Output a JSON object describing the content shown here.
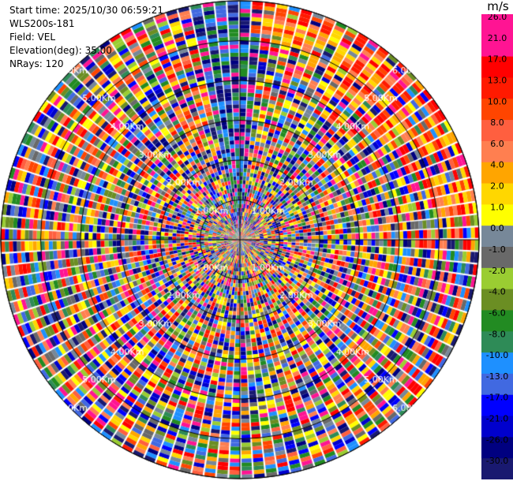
{
  "header": {
    "start_time": "Start time: 2025/10/30 06:59:21",
    "instrument": "WLS200s-181",
    "field": "Field: VEL",
    "elevation": "Elevation(deg): 35.00",
    "nrays": "NRays: 120"
  },
  "chart_data": {
    "type": "heatmap",
    "subtype": "ppi-polar",
    "field": "VEL",
    "n_rays": 120,
    "max_range_km": 6.0,
    "range_rings_km": [
      1,
      2,
      3,
      4,
      5,
      6
    ],
    "ring_labels": [
      "1.00Km",
      "2.00Km",
      "3.00Km",
      "4.00Km",
      "5.00Km",
      "6.00Km"
    ],
    "colorbar": {
      "unit": "m/s",
      "ticks": [
        "26.0",
        "21.0",
        "17.0",
        "13.0",
        "10.0",
        "8.0",
        "6.0",
        "4.0",
        "2.0",
        "1.0",
        "0.0",
        "-1.0",
        "-2.0",
        "-4.0",
        "-6.0",
        "-8.0",
        "-10.0",
        "-13.0",
        "-17.0",
        "-21.0",
        "-26.0",
        "-30.0"
      ],
      "colors": [
        "#ff1493",
        "#ff1493",
        "#ff0000",
        "#ff1a00",
        "#ff4500",
        "#ff5f3f",
        "#ff7f50",
        "#ffa500",
        "#ffd700",
        "#ffff00",
        "#778899",
        "#696969",
        "#9acd32",
        "#6b8e23",
        "#228b22",
        "#2e8b57",
        "#1e90ff",
        "#4169e1",
        "#0000ff",
        "#0000cd",
        "#000080",
        "#191970"
      ]
    },
    "northeast_sector_color": "#ff1a00"
  }
}
